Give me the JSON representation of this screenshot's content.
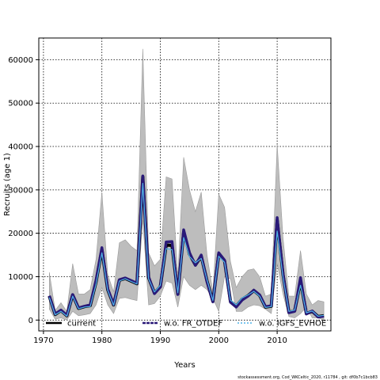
{
  "chart_data": {
    "type": "line",
    "title": "",
    "xlabel": "Years",
    "ylabel": "Recruits (age 1)",
    "xlim": [
      1969.2,
      2019.2
    ],
    "ylim": [
      -2500,
      65000
    ],
    "x_ticks": [
      "1970",
      "1980",
      "1990",
      "2000",
      "2010"
    ],
    "y_ticks": [
      "0",
      "10000",
      "20000",
      "30000",
      "40000",
      "50000",
      "60000"
    ],
    "grid": true,
    "legend_position": "bottom",
    "x": [
      1971,
      1972,
      1973,
      1974,
      1975,
      1976,
      1977,
      1978,
      1979,
      1980,
      1981,
      1982,
      1983,
      1984,
      1985,
      1986,
      1987,
      1988,
      1989,
      1990,
      1991,
      1992,
      1993,
      1994,
      1995,
      1996,
      1997,
      1998,
      1999,
      2000,
      2001,
      2002,
      2003,
      2004,
      2005,
      2006,
      2007,
      2008,
      2009,
      2010,
      2011,
      2012,
      2013,
      2014,
      2015,
      2016,
      2017,
      2018
    ],
    "band": {
      "lower": [
        2500,
        200,
        500,
        0,
        2000,
        1000,
        1200,
        1500,
        3500,
        7500,
        3500,
        1500,
        5000,
        5200,
        4800,
        4500,
        23000,
        3500,
        3800,
        5500,
        9000,
        8500,
        3000,
        10000,
        8000,
        7000,
        8000,
        7000,
        5000,
        2000,
        10000,
        9500,
        2000,
        2000,
        3000,
        3500,
        3300,
        2500,
        1500,
        13000,
        6000,
        800,
        500,
        1500,
        3000,
        500,
        500,
        0
      ],
      "upper": [
        11000,
        2200,
        4000,
        2000,
        13000,
        6000,
        6000,
        7000,
        14000,
        29500,
        10500,
        6500,
        17800,
        18500,
        17000,
        16000,
        62500,
        15500,
        12500,
        14000,
        33000,
        32500,
        10000,
        37500,
        30000,
        25000,
        29500,
        15000,
        6500,
        29000,
        26000,
        13500,
        7500,
        10000,
        11500,
        11800,
        10000,
        5500,
        6000,
        40500,
        19000,
        5500,
        5500,
        16000,
        6000,
        3500,
        4500,
        4200
      ]
    },
    "series": [
      {
        "name": "current",
        "color": "#000000",
        "values": [
          5500,
          1300,
          2200,
          1000,
          5800,
          2700,
          3100,
          3300,
          8800,
          16200,
          7000,
          3500,
          9200,
          9600,
          9000,
          8400,
          33000,
          9800,
          6200,
          7700,
          17300,
          17200,
          6000,
          20300,
          15200,
          12700,
          14700,
          9000,
          4300,
          15200,
          13600,
          4300,
          3200,
          4800,
          5600,
          6800,
          5700,
          3000,
          3200,
          23000,
          10500,
          1800,
          2100,
          9000,
          1500,
          2000,
          800,
          1000
        ]
      },
      {
        "name": "w.o. FR_OTDEF",
        "color": "#2a1a78",
        "values": [
          5600,
          1400,
          2300,
          1100,
          5900,
          2800,
          3200,
          3500,
          9200,
          16700,
          7200,
          3600,
          9300,
          9700,
          9100,
          8500,
          33200,
          10000,
          6100,
          7600,
          18000,
          18100,
          5900,
          20800,
          15500,
          12600,
          15000,
          8800,
          4200,
          15500,
          13800,
          4100,
          3000,
          4600,
          5500,
          6900,
          5800,
          3100,
          3300,
          23600,
          10700,
          1700,
          2000,
          9800,
          1400,
          2100,
          700,
          900
        ]
      },
      {
        "name": "w.o. IGFS_EVHOE",
        "color": "#4fb4e8",
        "values": [
          5200,
          1200,
          2000,
          900,
          5500,
          2600,
          3000,
          3100,
          8200,
          15500,
          6800,
          3400,
          9000,
          9500,
          8900,
          8300,
          31500,
          9500,
          6500,
          8000,
          16500,
          16200,
          6300,
          19000,
          14600,
          13200,
          14200,
          9300,
          4500,
          14700,
          13300,
          4600,
          3500,
          5100,
          5800,
          6600,
          5500,
          2900,
          3100,
          20500,
          9800,
          2000,
          2300,
          8000,
          1700,
          2100,
          900,
          1100
        ]
      }
    ],
    "footnote": "stockassessment.org, Cod_WKCeltic_2020, r11784 , git: df0b7c1bcb83"
  }
}
